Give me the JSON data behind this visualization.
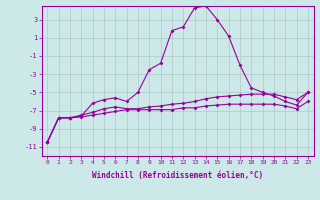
{
  "xlabel": "Windchill (Refroidissement éolien,°C)",
  "x": [
    0,
    1,
    2,
    3,
    4,
    5,
    6,
    7,
    8,
    9,
    10,
    11,
    12,
    13,
    14,
    15,
    16,
    17,
    18,
    19,
    20,
    21,
    22,
    23
  ],
  "line1": [
    -10.5,
    -7.8,
    -7.8,
    -7.6,
    -6.2,
    -5.8,
    -5.6,
    -6.0,
    -5.0,
    -2.5,
    -1.8,
    1.8,
    2.2,
    4.3,
    4.5,
    3.0,
    1.2,
    -2.0,
    -4.5,
    -5.0,
    -5.4,
    -6.0,
    -6.4,
    -5.0
  ],
  "line2": [
    -10.5,
    -7.8,
    -7.8,
    -7.5,
    -7.2,
    -6.8,
    -6.6,
    -6.8,
    -6.8,
    -6.6,
    -6.5,
    -6.3,
    -6.2,
    -6.0,
    -5.7,
    -5.5,
    -5.4,
    -5.3,
    -5.2,
    -5.2,
    -5.2,
    -5.5,
    -5.8,
    -5.0
  ],
  "line3": [
    -10.5,
    -7.8,
    -7.8,
    -7.7,
    -7.5,
    -7.3,
    -7.1,
    -6.9,
    -6.9,
    -6.9,
    -6.9,
    -6.9,
    -6.7,
    -6.7,
    -6.5,
    -6.4,
    -6.3,
    -6.3,
    -6.3,
    -6.3,
    -6.3,
    -6.5,
    -6.8,
    -6.0
  ],
  "ylim": [
    -12,
    4.5
  ],
  "yticks": [
    -11,
    -9,
    -7,
    -5,
    -3,
    -1,
    1,
    3
  ],
  "xticks": [
    0,
    1,
    2,
    3,
    4,
    5,
    6,
    7,
    8,
    9,
    10,
    11,
    12,
    13,
    14,
    15,
    16,
    17,
    18,
    19,
    20,
    21,
    22,
    23
  ],
  "line_color": "#990099",
  "bg_color": "#cce8e8",
  "grid_color": "#b0c8c8",
  "marker": "D",
  "marker_size": 2,
  "line_width": 0.8
}
